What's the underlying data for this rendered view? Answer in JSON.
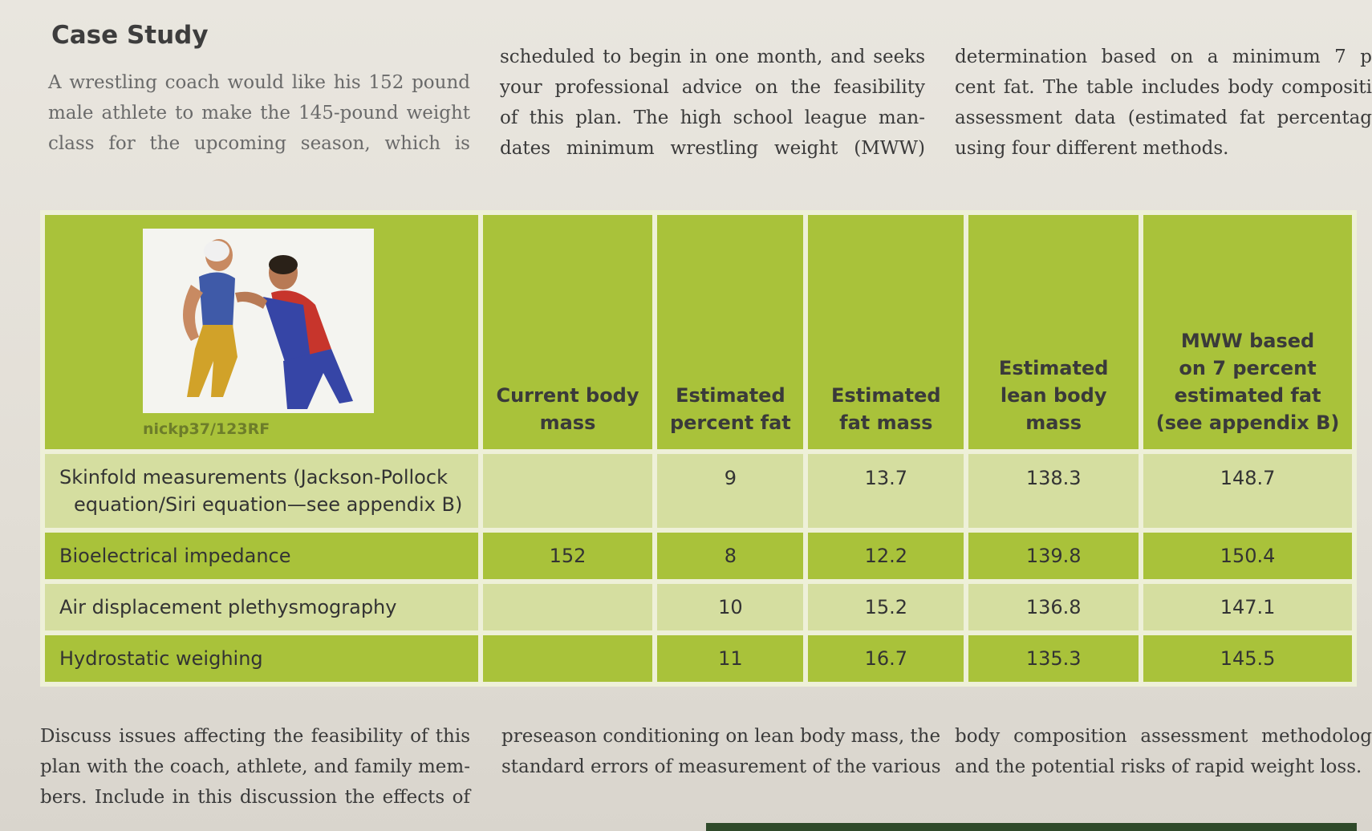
{
  "title": "Case Study",
  "intro": {
    "col1": [
      "A wrestling coach would like his 152 pound",
      "male athlete to make the 145-pound weight",
      "class for the upcoming season, which is"
    ],
    "col2": [
      "scheduled to begin in one month, and seeks",
      "your professional advice on the feasibility",
      "of this plan. The high school league man-",
      "dates minimum wrestling weight (MWW)"
    ],
    "col3": [
      "determination based on a minimum 7 p",
      "cent fat. The table includes body compositi",
      "assessment data (estimated fat percentag",
      "using four different methods."
    ]
  },
  "table": {
    "photo_credit": "nickp37/123RF",
    "headers": [
      [
        "Current body",
        "mass"
      ],
      [
        "Estimated",
        "percent fat"
      ],
      [
        "Estimated",
        "fat mass"
      ],
      [
        "Estimated",
        "lean body",
        "mass"
      ],
      [
        "MWW based",
        "on 7 percent",
        "estimated fat",
        "(see appendix B)"
      ]
    ],
    "rows": [
      {
        "label": [
          "Skinfold measurements (Jackson-Pollock",
          "equation/Siri equation—see appendix B)"
        ],
        "current": "",
        "pct": "9",
        "fat": "13.7",
        "lean": "138.3",
        "mww": "148.7"
      },
      {
        "label": [
          "Bioelectrical impedance"
        ],
        "current": "152",
        "pct": "8",
        "fat": "12.2",
        "lean": "139.8",
        "mww": "150.4"
      },
      {
        "label": [
          "Air displacement plethysmography"
        ],
        "current": "",
        "pct": "10",
        "fat": "15.2",
        "lean": "136.8",
        "mww": "147.1"
      },
      {
        "label": [
          "Hydrostatic weighing"
        ],
        "current": "",
        "pct": "11",
        "fat": "16.7",
        "lean": "135.3",
        "mww": "145.5"
      }
    ]
  },
  "discussion": {
    "col1": [
      "Discuss issues affecting the feasibility of this",
      "plan with the coach, athlete, and family mem-",
      "bers. Include in this discussion the effects of"
    ],
    "col2": [
      "preseason conditioning on lean body mass, the",
      "standard errors of measurement of the various"
    ],
    "col3": [
      "body composition assessment methodolog",
      "and the potential risks of rapid weight loss."
    ]
  }
}
